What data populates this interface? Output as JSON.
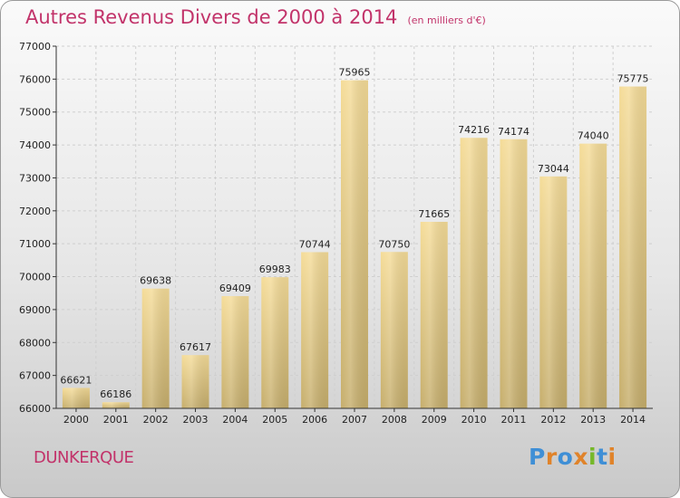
{
  "header": {
    "title": "Autres Revenus Divers de 2000 à 2014",
    "unit": "(en milliers d'€)"
  },
  "footer": {
    "commune": "DUNKERQUE",
    "logo": "Proxiti"
  },
  "colors": {
    "title": "#c2336a",
    "bar_light": "#f5dc98",
    "bar_dark": "#c6ae6c",
    "grid": "#cfcfcf",
    "axis": "#333333"
  },
  "chart_data": {
    "type": "bar",
    "title": "Autres Revenus Divers de 2000 à 2014",
    "subtitle": "(en milliers d'€)",
    "xlabel": "",
    "ylabel": "",
    "categories": [
      "2000",
      "2001",
      "2002",
      "2003",
      "2004",
      "2005",
      "2006",
      "2007",
      "2008",
      "2009",
      "2010",
      "2011",
      "2012",
      "2013",
      "2014"
    ],
    "values": [
      66621,
      66186,
      69638,
      67617,
      69409,
      69983,
      70744,
      75965,
      70750,
      71665,
      74216,
      74174,
      73044,
      74040,
      75775
    ],
    "ylim": [
      66000,
      77000
    ],
    "yticks": [
      66000,
      67000,
      68000,
      69000,
      70000,
      71000,
      72000,
      73000,
      74000,
      75000,
      76000,
      77000
    ],
    "grid": true,
    "data_labels": true
  }
}
